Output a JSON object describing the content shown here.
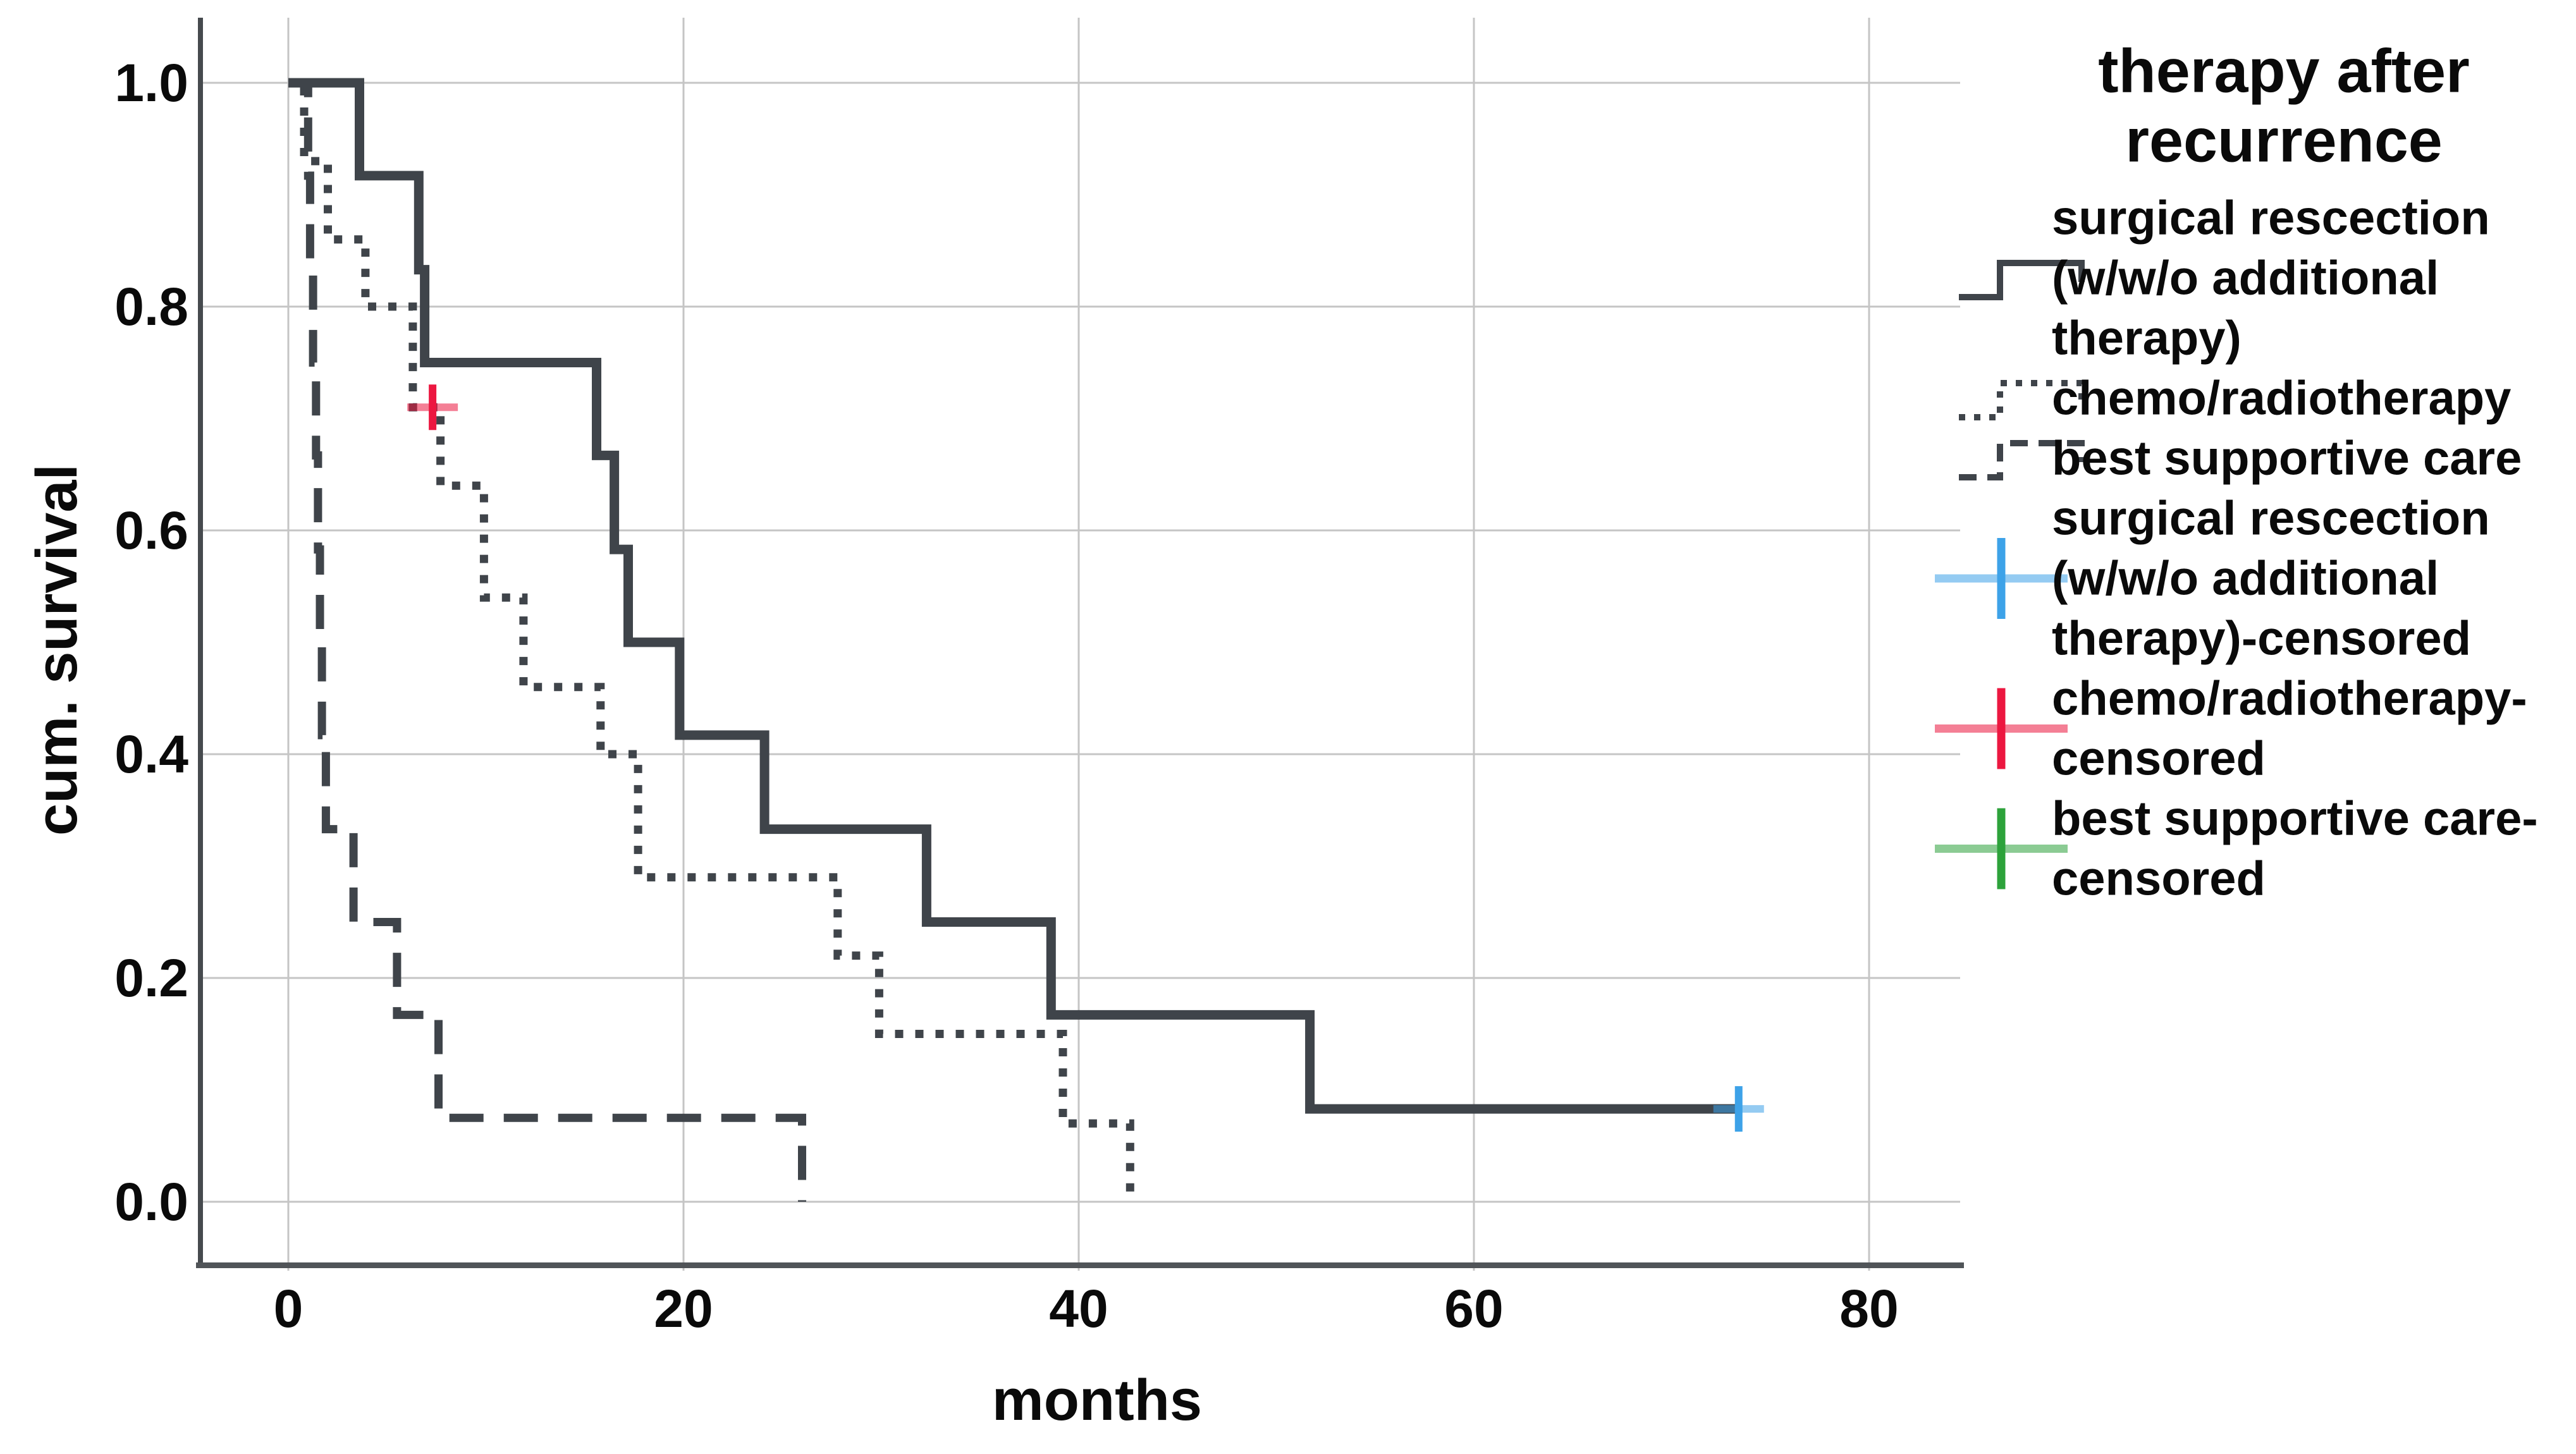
{
  "chart_data": {
    "type": "line",
    "subtype": "kaplan-meier-step",
    "title": "",
    "xlabel": "months",
    "ylabel": "cum. survival",
    "x_ticks": [
      0,
      20,
      40,
      60,
      80
    ],
    "x_tick_labels": [
      "0",
      "20",
      "40",
      "60",
      "80"
    ],
    "y_ticks": [
      0.0,
      0.2,
      0.4,
      0.6,
      0.8,
      1.0
    ],
    "y_tick_labels": [
      "0.0",
      "0.2",
      "0.4",
      "0.6",
      "0.8",
      "1.0"
    ],
    "xlim": [
      -4.4,
      84.6
    ],
    "ylim": [
      -0.06,
      1.06
    ],
    "grid": true,
    "line_color": "#3f444a",
    "series": [
      {
        "name": "surgical rescection (w/w/o additional therapy)",
        "style": "solid",
        "steps": [
          [
            0,
            1.0
          ],
          [
            3.6,
            0.917
          ],
          [
            6.6,
            0.833
          ],
          [
            6.9,
            0.75
          ],
          [
            15.6,
            0.667
          ],
          [
            16.5,
            0.583
          ],
          [
            17.2,
            0.5
          ],
          [
            19.8,
            0.417
          ],
          [
            24.1,
            0.333
          ],
          [
            32.3,
            0.25
          ],
          [
            38.6,
            0.167
          ],
          [
            51.7,
            0.083
          ]
        ],
        "end_month": 73.4,
        "censored": [
          [
            73.4,
            0.083
          ]
        ],
        "censor_color": "#3da2e8"
      },
      {
        "name": "chemo/radiotherapy",
        "style": "dotted",
        "steps": [
          [
            0,
            1.0
          ],
          [
            0.8,
            0.93
          ],
          [
            2.0,
            0.86
          ],
          [
            3.9,
            0.8
          ],
          [
            6.3,
            0.71
          ],
          [
            7.7,
            0.64
          ],
          [
            9.9,
            0.54
          ],
          [
            11.9,
            0.46
          ],
          [
            15.8,
            0.4
          ],
          [
            17.7,
            0.29
          ],
          [
            27.8,
            0.22
          ],
          [
            29.9,
            0.15
          ],
          [
            39.2,
            0.07
          ],
          [
            42.6,
            0.0
          ]
        ],
        "end_month": 42.6,
        "censored": [
          [
            7.3,
            0.71
          ]
        ],
        "censor_color": "#ec1740"
      },
      {
        "name": "best supportive care",
        "style": "dashed",
        "steps": [
          [
            0,
            1.0
          ],
          [
            1.0,
            0.917
          ],
          [
            1.1,
            0.833
          ],
          [
            1.25,
            0.75
          ],
          [
            1.4,
            0.667
          ],
          [
            1.5,
            0.583
          ],
          [
            1.6,
            0.5
          ],
          [
            1.7,
            0.417
          ],
          [
            1.9,
            0.333
          ],
          [
            3.3,
            0.25
          ],
          [
            5.5,
            0.167
          ],
          [
            7.6,
            0.075
          ],
          [
            26.0,
            0.0
          ]
        ],
        "end_month": 26.0,
        "censored": [],
        "censor_color": "#2da23b"
      }
    ],
    "legend_position": "right"
  },
  "legend": {
    "title_lines": [
      "therapy after",
      "recurrence"
    ],
    "items": [
      {
        "lines": [
          "surgical rescection",
          "(w/w/o additional",
          "therapy)"
        ],
        "glyph": "step-line",
        "style": "solid",
        "color": "#3f444a"
      },
      {
        "lines": [
          "chemo/radiotherapy"
        ],
        "glyph": "step-line",
        "style": "dotted",
        "color": "#3f444a"
      },
      {
        "lines": [
          "best supportive care"
        ],
        "glyph": "step-line",
        "style": "dashed",
        "color": "#3f444a"
      },
      {
        "lines": [
          "surgical rescection",
          "(w/w/o additional",
          "therapy)-censored"
        ],
        "glyph": "plus-cross",
        "style": "solid",
        "color": "#3da2e8"
      },
      {
        "lines": [
          "chemo/radiotherapy-",
          "censored"
        ],
        "glyph": "plus-cross",
        "style": "solid",
        "color": "#ec1740"
      },
      {
        "lines": [
          "best supportive care-",
          "censored"
        ],
        "glyph": "plus-cross",
        "style": "solid",
        "color": "#2da23b"
      }
    ]
  },
  "colors": {
    "curve": "#3f444a",
    "gridline": "#c5c5c5",
    "axis_left": "#464a4e",
    "axis_bottom": "#505458",
    "censor_blue": "#3da2e8",
    "censor_red": "#ec1740",
    "censor_green": "#2da23b",
    "background": "#ffffff",
    "text": "#0a0a0a"
  }
}
